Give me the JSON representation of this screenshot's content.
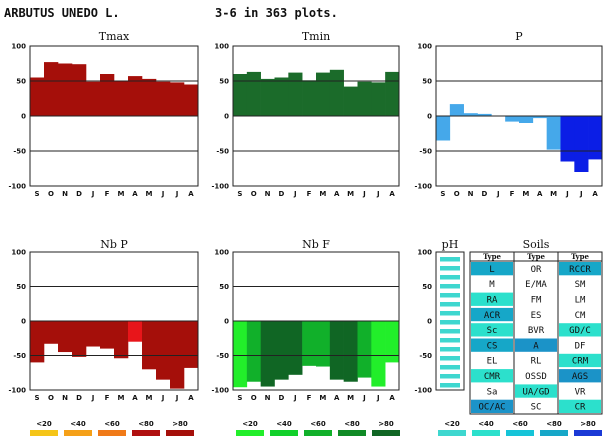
{
  "header": {
    "species": "ARBUTUS UNEDO L.",
    "plots": "3-6 in 363 plots."
  },
  "months": [
    "S",
    "O",
    "N",
    "D",
    "J",
    "F",
    "M",
    "A",
    "M",
    "J",
    "J",
    "A"
  ],
  "y_ticks": [
    "100",
    "50",
    "0",
    "-50",
    "-100"
  ],
  "colors": {
    "tmax": "#a50f0a",
    "tmin": "#1b6b2a",
    "p_light": "#45a8ea",
    "p_dark": "#0b1ee6",
    "nbp": "#a50f0a",
    "nbp_bright": "#e8151a",
    "nbf_bright": "#22ee2a",
    "nbf_mid": "#11b02a",
    "nbf_dark": "#106624",
    "ph": "#3ed7cf",
    "soil_c1": "#2ce0cc",
    "soil_c2": "#16a7c8",
    "soil_c3": "#1b93c8"
  },
  "chart_data": [
    {
      "type": "bar",
      "title": "Tmax",
      "categories": [
        "S",
        "O",
        "N",
        "D",
        "J",
        "F",
        "M",
        "A",
        "M",
        "J",
        "J",
        "A"
      ],
      "values": [
        55,
        77,
        75,
        74,
        49,
        60,
        50,
        57,
        53,
        49,
        48,
        45
      ],
      "ylim": [
        -100,
        100
      ],
      "color": "tmax"
    },
    {
      "type": "bar",
      "title": "Tmin",
      "categories": [
        "S",
        "O",
        "N",
        "D",
        "J",
        "F",
        "M",
        "A",
        "M",
        "J",
        "J",
        "A"
      ],
      "values": [
        60,
        63,
        53,
        55,
        62,
        51,
        62,
        66,
        42,
        49,
        48,
        63
      ],
      "ylim": [
        -100,
        100
      ],
      "color": "tmin"
    },
    {
      "type": "bar",
      "title": "P",
      "categories": [
        "S",
        "O",
        "N",
        "D",
        "J",
        "F",
        "M",
        "A",
        "M",
        "J",
        "J",
        "A"
      ],
      "values": [
        -35,
        17,
        4,
        3,
        0,
        -8,
        -10,
        -3,
        -48,
        -65,
        -80,
        -62
      ],
      "ylim": [
        -100,
        100
      ],
      "colors": [
        "p_light",
        "p_light",
        "p_light",
        "p_light",
        "p_light",
        "p_light",
        "p_light",
        "p_light",
        "p_light",
        "p_dark",
        "p_dark",
        "p_dark"
      ]
    },
    {
      "type": "bar",
      "title": "Nb P",
      "categories": [
        "S",
        "O",
        "N",
        "D",
        "J",
        "F",
        "M",
        "A",
        "M",
        "J",
        "J",
        "A"
      ],
      "values": [
        -60,
        -33,
        -45,
        -52,
        -37,
        -40,
        -54,
        -30,
        -70,
        -85,
        -98,
        -68
      ],
      "ylim": [
        -100,
        100
      ],
      "colors": [
        "nbp",
        "nbp",
        "nbp",
        "nbp",
        "nbp",
        "nbp",
        "nbp",
        "nbp_bright",
        "nbp",
        "nbp",
        "nbp",
        "nbp"
      ]
    },
    {
      "type": "bar",
      "title": "Nb F",
      "categories": [
        "S",
        "O",
        "N",
        "D",
        "J",
        "F",
        "M",
        "A",
        "M",
        "J",
        "J",
        "A"
      ],
      "values": [
        -96,
        -88,
        -95,
        -85,
        -78,
        -65,
        -66,
        -85,
        -88,
        -82,
        -95,
        -60
      ],
      "ylim": [
        -100,
        100
      ],
      "colors": [
        "nbf_bright",
        "nbf_mid",
        "nbf_dark",
        "nbf_dark",
        "nbf_dark",
        "nbf_mid",
        "nbf_mid",
        "nbf_dark",
        "nbf_dark",
        "nbf_mid",
        "nbf_bright",
        "nbf_bright"
      ]
    }
  ],
  "ph": {
    "title": "pH",
    "y_ticks": [
      "100",
      "50",
      "0",
      "-50",
      "-100"
    ]
  },
  "soils": {
    "title": "Soils",
    "headers": [
      "Type",
      "Type",
      "Type"
    ],
    "rows": [
      [
        {
          "t": "L",
          "c": "soil_c2"
        },
        {
          "t": "OR",
          "c": ""
        },
        {
          "t": "RCCR",
          "c": "soil_c2"
        }
      ],
      [
        {
          "t": "M",
          "c": ""
        },
        {
          "t": "E/MA",
          "c": ""
        },
        {
          "t": "SM",
          "c": ""
        }
      ],
      [
        {
          "t": "RA",
          "c": "soil_c1"
        },
        {
          "t": "FM",
          "c": ""
        },
        {
          "t": "LM",
          "c": ""
        }
      ],
      [
        {
          "t": "ACR",
          "c": "soil_c2"
        },
        {
          "t": "ES",
          "c": ""
        },
        {
          "t": "CM",
          "c": ""
        }
      ],
      [
        {
          "t": "Sc",
          "c": "soil_c1"
        },
        {
          "t": "BVR",
          "c": ""
        },
        {
          "t": "GD/C",
          "c": "soil_c1"
        }
      ],
      [
        {
          "t": "CS",
          "c": "soil_c2"
        },
        {
          "t": "A",
          "c": "soil_c3"
        },
        {
          "t": "DF",
          "c": ""
        }
      ],
      [
        {
          "t": "EL",
          "c": ""
        },
        {
          "t": "RL",
          "c": ""
        },
        {
          "t": "CRM",
          "c": "soil_c1"
        }
      ],
      [
        {
          "t": "CMR",
          "c": "soil_c1"
        },
        {
          "t": "OSSD",
          "c": ""
        },
        {
          "t": "AGS",
          "c": "soil_c3"
        }
      ],
      [
        {
          "t": "Sa",
          "c": ""
        },
        {
          "t": "UA/GD",
          "c": "soil_c1"
        },
        {
          "t": "VR",
          "c": ""
        }
      ],
      [
        {
          "t": "OC/AC",
          "c": "soil_c3"
        },
        {
          "t": "SC",
          "c": ""
        },
        {
          "t": "CR",
          "c": "soil_c1"
        }
      ]
    ]
  },
  "legends": {
    "labels": [
      "<20",
      "<40",
      "<60",
      "<80",
      ">80"
    ],
    "red": [
      "#f5c518",
      "#f5a018",
      "#f07a18",
      "#b01010",
      "#a50f0a"
    ],
    "green": [
      "#22ee2a",
      "#11d02a",
      "#11b02a",
      "#108a26",
      "#106624"
    ],
    "blue": [
      "#3ed7cf",
      "#2ce0cc",
      "#16c4d8",
      "#16a7c8",
      "#1b3ad6"
    ]
  }
}
